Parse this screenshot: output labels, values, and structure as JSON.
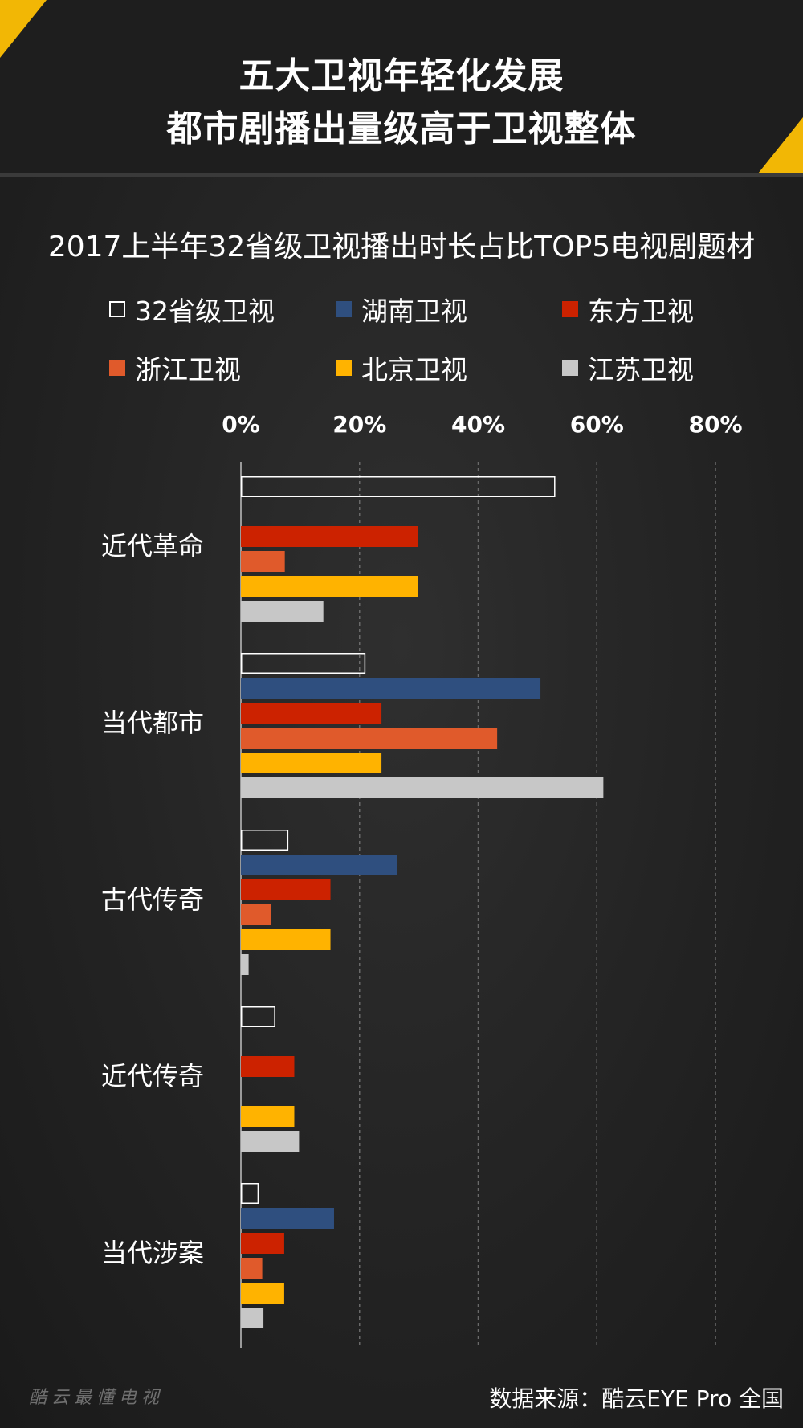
{
  "header": {
    "line1": "五大卫视年轻化发展",
    "line2": "都市剧播出量级高于卫视整体"
  },
  "colors": {
    "accent": "#f2b705",
    "background": "#232323",
    "gridline": "#6a6a6a"
  },
  "chart_data": {
    "type": "bar",
    "orientation": "horizontal",
    "title": "2017上半年32省级卫视播出时长占比TOP5电视剧题材",
    "categories": [
      "近代革命",
      "当代都市",
      "古代传奇",
      "近代传奇",
      "当代涉案"
    ],
    "xlim": [
      0,
      80
    ],
    "xticks": [
      0,
      20,
      40,
      60,
      80
    ],
    "xtick_labels": [
      "0%",
      "20%",
      "40%",
      "60%",
      "80%"
    ],
    "grid": true,
    "legend_position": "top",
    "series": [
      {
        "name": "32省级卫视",
        "color": "#2a2a2a",
        "outline": "#ffffff",
        "values": [
          53,
          21,
          8,
          5.8,
          3
        ]
      },
      {
        "name": "湖南卫视",
        "color": "#2f4f7f",
        "values": [
          0,
          50.5,
          26.3,
          0,
          15.7
        ]
      },
      {
        "name": "东方卫视",
        "color": "#cc2200",
        "values": [
          29.8,
          23.7,
          15.1,
          9,
          7.3
        ]
      },
      {
        "name": "浙江卫视",
        "color": "#e05a2b",
        "values": [
          7.4,
          43.2,
          5.1,
          0,
          3.6
        ]
      },
      {
        "name": "北京卫视",
        "color": "#ffb300",
        "values": [
          29.8,
          23.7,
          15.1,
          9,
          7.3
        ]
      },
      {
        "name": "江苏卫视",
        "color": "#c7c7c7",
        "values": [
          13.9,
          61.1,
          1.3,
          9.8,
          3.8
        ]
      }
    ]
  },
  "footer": {
    "watermark": "酷云最懂电视",
    "source": "数据来源：酷云EYE Pro 全国"
  }
}
